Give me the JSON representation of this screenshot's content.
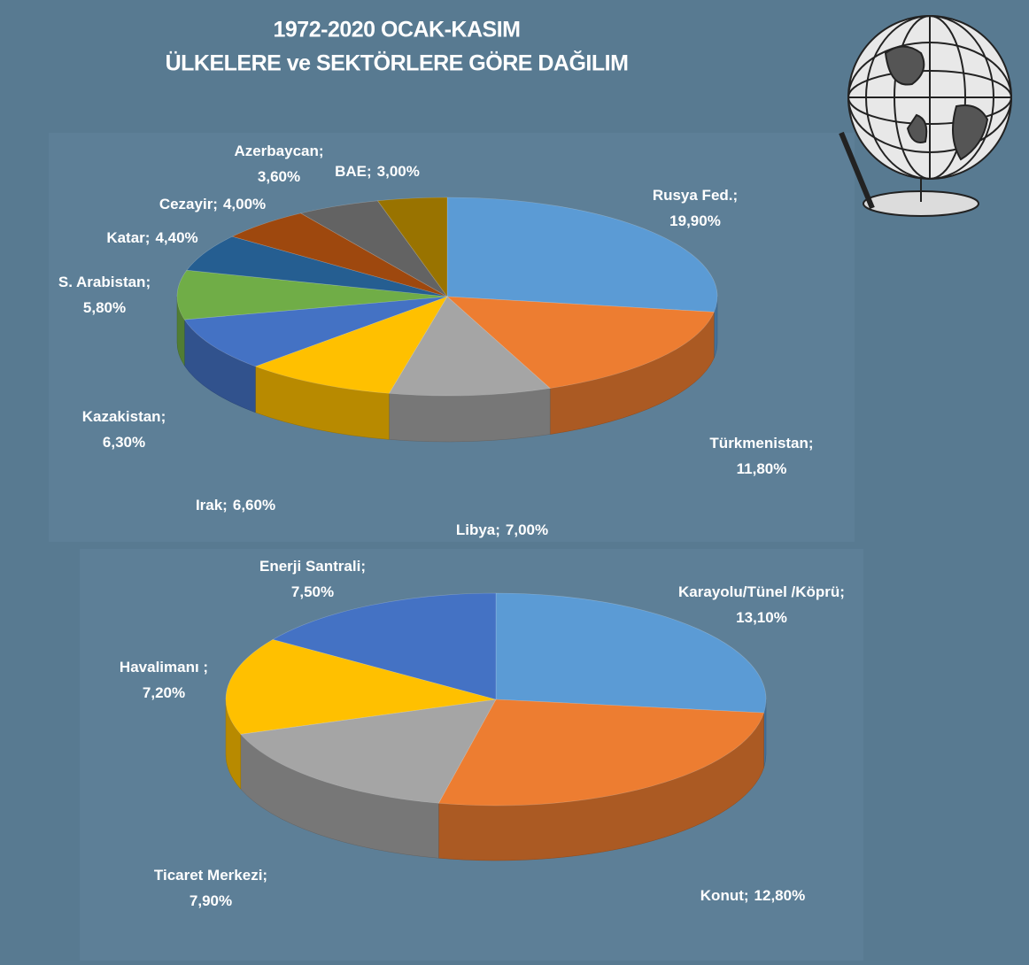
{
  "title": [
    "1972-2020 OCAK-KASIM",
    "ÜLKELERE ve SEKTÖRLERE GÖRE DAĞILIM"
  ],
  "chart_data": [
    {
      "type": "pie",
      "categories": [
        "Rusya Fed.;",
        "Türkmenistan;",
        "Libya;",
        "Irak;",
        "Kazakistan;",
        "S. Arabistan;",
        "Katar;",
        "Cezayir;",
        "Azerbaycan;",
        "BAE;"
      ],
      "values": [
        19.9,
        11.8,
        7.0,
        6.6,
        6.3,
        5.8,
        4.4,
        4.0,
        3.6,
        3.0
      ],
      "value_labels": [
        "19,90%",
        "11,80%",
        "7,00%",
        "6,60%",
        "6,30%",
        "5,80%",
        "4,40%",
        "4,00%",
        "3,60%",
        "3,00%"
      ],
      "colors": [
        "#5b9bd5",
        "#ed7d31",
        "#a5a5a5",
        "#ffc000",
        "#4472c4",
        "#70ad47",
        "#255e91",
        "#9e480e",
        "#636363",
        "#997300"
      ]
    },
    {
      "type": "pie",
      "categories": [
        "Karayolu/Tünel /Köprü;",
        "Konut;",
        "Ticaret Merkezi;",
        "Havalimanı ;",
        "Enerji Santrali;"
      ],
      "values": [
        13.1,
        12.8,
        7.9,
        7.2,
        7.5
      ],
      "value_labels": [
        "13,10%",
        "12,80%",
        "7,90%",
        "7,20%",
        "7,50%"
      ],
      "colors": [
        "#5b9bd5",
        "#ed7d31",
        "#a5a5a5",
        "#ffc000",
        "#4472c4"
      ]
    }
  ]
}
